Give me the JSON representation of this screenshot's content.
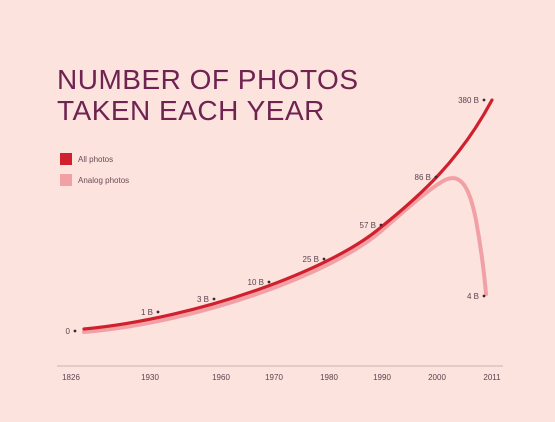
{
  "title_line1": "NUMBER OF PHOTOS",
  "title_line2": "TAKEN EACH YEAR",
  "legend": [
    {
      "label": "All photos",
      "color": "#d0202e"
    },
    {
      "label": "Analog photos",
      "color": "#f1a0a6"
    }
  ],
  "chart_data": {
    "type": "line",
    "title": "NUMBER OF PHOTOS TAKEN EACH YEAR",
    "x_ticks": [
      "1826",
      "1930",
      "1960",
      "1970",
      "1980",
      "1990",
      "2000",
      "2011"
    ],
    "series": [
      {
        "name": "All photos",
        "color": "#d0202e",
        "points": [
          {
            "x": "1826",
            "y": 0,
            "label": "0"
          },
          {
            "x": "1930",
            "y": 1,
            "label": "1 B"
          },
          {
            "x": "1960",
            "y": 3,
            "label": "3 B"
          },
          {
            "x": "1970",
            "y": 10,
            "label": "10 B"
          },
          {
            "x": "1980",
            "y": 25,
            "label": "25 B"
          },
          {
            "x": "1990",
            "y": 57,
            "label": "57 B"
          },
          {
            "x": "2000",
            "y": 86,
            "label": "86 B"
          },
          {
            "x": "2011",
            "y": 380,
            "label": "380 B"
          }
        ]
      },
      {
        "name": "Analog photos",
        "color": "#f1a0a6",
        "points": [
          {
            "x": "1826",
            "y": 0
          },
          {
            "x": "1930",
            "y": 1
          },
          {
            "x": "1960",
            "y": 3
          },
          {
            "x": "1970",
            "y": 10
          },
          {
            "x": "1980",
            "y": 25
          },
          {
            "x": "1990",
            "y": 57
          },
          {
            "x": "2000",
            "y": 86
          },
          {
            "x": "2011",
            "y": 4,
            "label": "4 B"
          }
        ]
      }
    ],
    "legend_position": "top-left",
    "grid": false
  }
}
